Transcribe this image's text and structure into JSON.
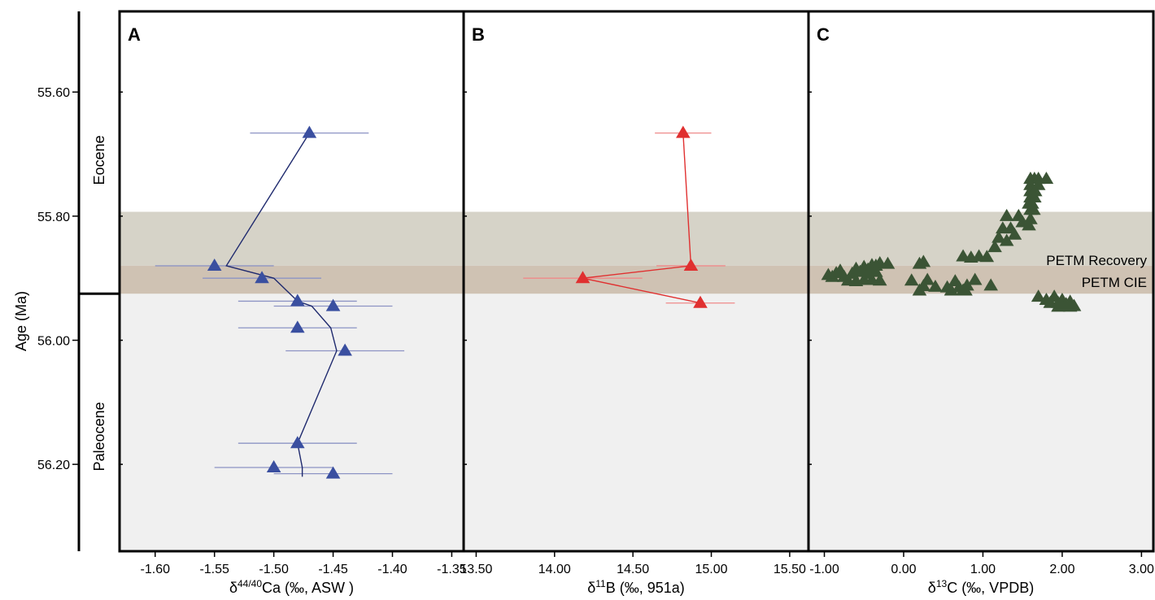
{
  "chart_data": {
    "type": "scatter",
    "y_axis": {
      "label": "Age (Ma)",
      "ticks": [
        "55.60",
        "55.80",
        "56.00",
        "56.20"
      ],
      "tick_values": [
        55.6,
        55.8,
        56.0,
        56.2
      ],
      "range": [
        55.47,
        56.34
      ],
      "inverted": true
    },
    "epochs": [
      {
        "name": "Eocene",
        "from": 55.47,
        "to": 55.925
      },
      {
        "name": "Paleocene",
        "from": 55.925,
        "to": 56.34
      }
    ],
    "bands": [
      {
        "label": "PETM Recovery",
        "from": 55.793,
        "to": 55.88,
        "color": "#d6d3c8"
      },
      {
        "label": "PETM CIE",
        "from": 55.88,
        "to": 55.925,
        "color": "#cfc2b3"
      }
    ],
    "paleocene_shade": "#f0f0f0",
    "panels": [
      {
        "letter": "A",
        "xlabel_main": "δ",
        "xlabel_sup": "44/40",
        "xlabel_rest": "Ca (‰, ASW )",
        "xlim": [
          -1.63,
          -1.34
        ],
        "xticks": [
          "-1.60",
          "-1.55",
          "-1.50",
          "-1.45",
          "-1.40",
          "-1.35"
        ],
        "xtick_values": [
          -1.6,
          -1.55,
          -1.5,
          -1.45,
          -1.4,
          -1.35
        ],
        "color": "#3a4fa0",
        "line_color": "#1f2a6e",
        "errbar_color": "#8d94c4",
        "points": [
          {
            "x": -1.47,
            "y": 55.666,
            "err": 0.05
          },
          {
            "x": -1.55,
            "y": 55.88,
            "err": 0.05
          },
          {
            "x": -1.51,
            "y": 55.9,
            "err": 0.05
          },
          {
            "x": -1.48,
            "y": 55.937,
            "err": 0.05
          },
          {
            "x": -1.45,
            "y": 55.945,
            "err": 0.05
          },
          {
            "x": -1.48,
            "y": 55.98,
            "err": 0.05
          },
          {
            "x": -1.44,
            "y": 56.017,
            "err": 0.05
          },
          {
            "x": -1.48,
            "y": 56.166,
            "err": 0.05
          },
          {
            "x": -1.5,
            "y": 56.205,
            "err": 0.05
          },
          {
            "x": -1.45,
            "y": 56.215,
            "err": 0.05
          }
        ],
        "line": [
          {
            "x": -1.47,
            "y": 55.666
          },
          {
            "x": -1.54,
            "y": 55.88
          },
          {
            "x": -1.5,
            "y": 55.9
          },
          {
            "x": -1.48,
            "y": 55.937
          },
          {
            "x": -1.468,
            "y": 55.945
          },
          {
            "x": -1.452,
            "y": 55.98
          },
          {
            "x": -1.447,
            "y": 56.017
          },
          {
            "x": -1.48,
            "y": 56.166
          },
          {
            "x": -1.476,
            "y": 56.205
          },
          {
            "x": -1.476,
            "y": 56.22
          }
        ]
      },
      {
        "letter": "B",
        "xlabel_main": "δ",
        "xlabel_sup": "11",
        "xlabel_rest": "B (‰, 951a)",
        "xlim": [
          13.42,
          15.62
        ],
        "xticks": [
          "13.50",
          "14.00",
          "14.50",
          "15.00",
          "15.50"
        ],
        "xtick_values": [
          13.5,
          14.0,
          14.5,
          15.0,
          15.5
        ],
        "color": "#e03030",
        "line_color": "#e03030",
        "errbar_color": "#ef8a8a",
        "points": [
          {
            "x": 14.82,
            "y": 55.666,
            "err": 0.18
          },
          {
            "x": 14.87,
            "y": 55.88,
            "err": 0.22
          },
          {
            "x": 14.18,
            "y": 55.9,
            "err": 0.38
          },
          {
            "x": 14.93,
            "y": 55.94,
            "err": 0.22
          }
        ],
        "line": [
          {
            "x": 14.82,
            "y": 55.666
          },
          {
            "x": 14.87,
            "y": 55.88
          },
          {
            "x": 14.18,
            "y": 55.9
          },
          {
            "x": 14.93,
            "y": 55.94
          }
        ]
      },
      {
        "letter": "C",
        "xlabel_main": "δ",
        "xlabel_sup": "13",
        "xlabel_rest": "C (‰, VPDB)",
        "xlim": [
          -1.2,
          3.15
        ],
        "xticks": [
          "-1.00",
          "0.00",
          "1.00",
          "2.00",
          "3.00"
        ],
        "xtick_values": [
          -1.0,
          0.0,
          1.0,
          2.0,
          3.0
        ],
        "color": "#3b5435",
        "points": [
          {
            "x": 1.6,
            "y": 55.74
          },
          {
            "x": 1.65,
            "y": 55.74
          },
          {
            "x": 1.7,
            "y": 55.74
          },
          {
            "x": 1.8,
            "y": 55.74
          },
          {
            "x": 1.6,
            "y": 55.75
          },
          {
            "x": 1.7,
            "y": 55.75
          },
          {
            "x": 1.6,
            "y": 55.76
          },
          {
            "x": 1.66,
            "y": 55.76
          },
          {
            "x": 1.6,
            "y": 55.77
          },
          {
            "x": 1.65,
            "y": 55.77
          },
          {
            "x": 1.58,
            "y": 55.78
          },
          {
            "x": 1.62,
            "y": 55.78
          },
          {
            "x": 1.6,
            "y": 55.79
          },
          {
            "x": 1.64,
            "y": 55.79
          },
          {
            "x": 1.6,
            "y": 55.805
          },
          {
            "x": 1.58,
            "y": 55.815
          },
          {
            "x": 1.3,
            "y": 55.8
          },
          {
            "x": 1.45,
            "y": 55.8
          },
          {
            "x": 1.5,
            "y": 55.81
          },
          {
            "x": 1.25,
            "y": 55.82
          },
          {
            "x": 1.35,
            "y": 55.82
          },
          {
            "x": 1.4,
            "y": 55.83
          },
          {
            "x": 1.2,
            "y": 55.835
          },
          {
            "x": 1.15,
            "y": 55.85
          },
          {
            "x": 1.3,
            "y": 55.84
          },
          {
            "x": 0.95,
            "y": 55.865
          },
          {
            "x": 0.75,
            "y": 55.865
          },
          {
            "x": 0.85,
            "y": 55.867
          },
          {
            "x": 1.05,
            "y": 55.866
          },
          {
            "x": 0.25,
            "y": 55.874
          },
          {
            "x": 0.2,
            "y": 55.877
          },
          {
            "x": -0.95,
            "y": 55.895
          },
          {
            "x": -0.9,
            "y": 55.898
          },
          {
            "x": -0.85,
            "y": 55.892
          },
          {
            "x": -0.8,
            "y": 55.888
          },
          {
            "x": -0.75,
            "y": 55.898
          },
          {
            "x": -0.65,
            "y": 55.893
          },
          {
            "x": -0.6,
            "y": 55.885
          },
          {
            "x": -0.55,
            "y": 55.89
          },
          {
            "x": -0.5,
            "y": 55.882
          },
          {
            "x": -0.45,
            "y": 55.886
          },
          {
            "x": -0.4,
            "y": 55.879
          },
          {
            "x": -0.35,
            "y": 55.88
          },
          {
            "x": -0.3,
            "y": 55.876
          },
          {
            "x": -0.2,
            "y": 55.877
          },
          {
            "x": -0.35,
            "y": 55.89
          },
          {
            "x": -0.7,
            "y": 55.904
          },
          {
            "x": -0.6,
            "y": 55.905
          },
          {
            "x": -0.5,
            "y": 55.903
          },
          {
            "x": -0.4,
            "y": 55.903
          },
          {
            "x": -0.3,
            "y": 55.904
          },
          {
            "x": -0.45,
            "y": 55.893
          },
          {
            "x": 0.1,
            "y": 55.904
          },
          {
            "x": 0.3,
            "y": 55.903
          },
          {
            "x": 0.25,
            "y": 55.913
          },
          {
            "x": 0.2,
            "y": 55.92
          },
          {
            "x": 0.4,
            "y": 55.914
          },
          {
            "x": 0.55,
            "y": 55.915
          },
          {
            "x": 0.6,
            "y": 55.92
          },
          {
            "x": 0.65,
            "y": 55.905
          },
          {
            "x": 0.7,
            "y": 55.915
          },
          {
            "x": 0.75,
            "y": 55.92
          },
          {
            "x": 0.8,
            "y": 55.912
          },
          {
            "x": 0.78,
            "y": 55.92
          },
          {
            "x": 1.1,
            "y": 55.912
          },
          {
            "x": 0.9,
            "y": 55.903
          },
          {
            "x": 1.7,
            "y": 55.93
          },
          {
            "x": 1.8,
            "y": 55.935
          },
          {
            "x": 1.9,
            "y": 55.93
          },
          {
            "x": 1.85,
            "y": 55.94
          },
          {
            "x": 1.95,
            "y": 55.94
          },
          {
            "x": 2.0,
            "y": 55.935
          },
          {
            "x": 2.05,
            "y": 55.942
          },
          {
            "x": 2.1,
            "y": 55.938
          },
          {
            "x": 2.15,
            "y": 55.945
          },
          {
            "x": 1.95,
            "y": 55.946
          },
          {
            "x": 2.1,
            "y": 55.946
          },
          {
            "x": 2.0,
            "y": 55.945
          }
        ]
      }
    ]
  }
}
